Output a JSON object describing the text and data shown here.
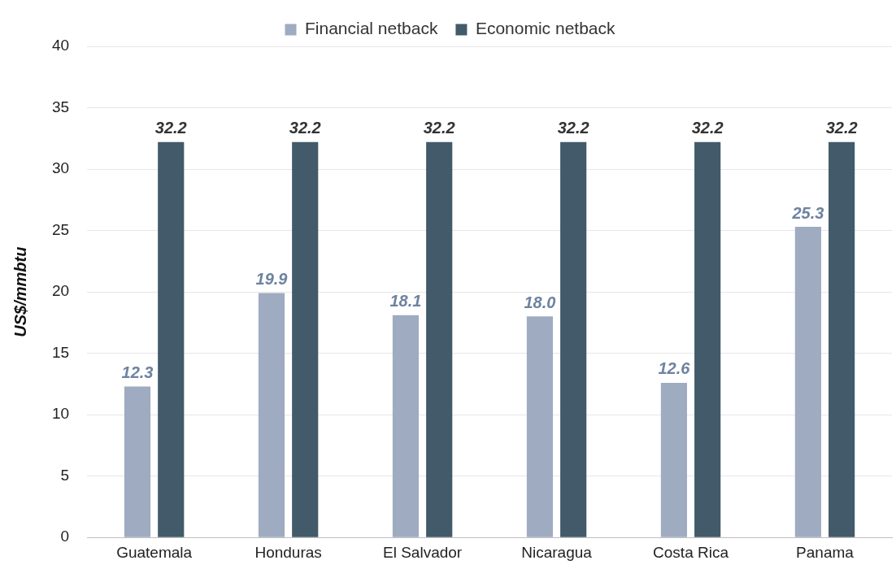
{
  "chart_data": {
    "type": "bar",
    "ylabel": "US$/mmbtu",
    "categories": [
      "Guatemala",
      "Honduras",
      "El Salvador",
      "Nicaragua",
      "Costa Rica",
      "Panama"
    ],
    "series": [
      {
        "name": "Financial netback",
        "color": "#9eabc1",
        "values": [
          12.3,
          19.9,
          18.1,
          18.0,
          12.6,
          25.3
        ],
        "value_labels": [
          "12.3",
          "19.9",
          "18.1",
          "18.0",
          "12.6",
          "25.3"
        ]
      },
      {
        "name": "Economic netback",
        "color": "#425a69",
        "values": [
          32.2,
          32.2,
          32.2,
          32.2,
          32.2,
          32.2
        ],
        "value_labels": [
          "32.2",
          "32.2",
          "32.2",
          "32.2",
          "32.2",
          "32.2"
        ]
      }
    ],
    "ylim": [
      0,
      40
    ],
    "yticks": [
      0,
      5,
      10,
      15,
      20,
      25,
      30,
      35,
      40
    ],
    "grid": "y",
    "legend": "top"
  }
}
